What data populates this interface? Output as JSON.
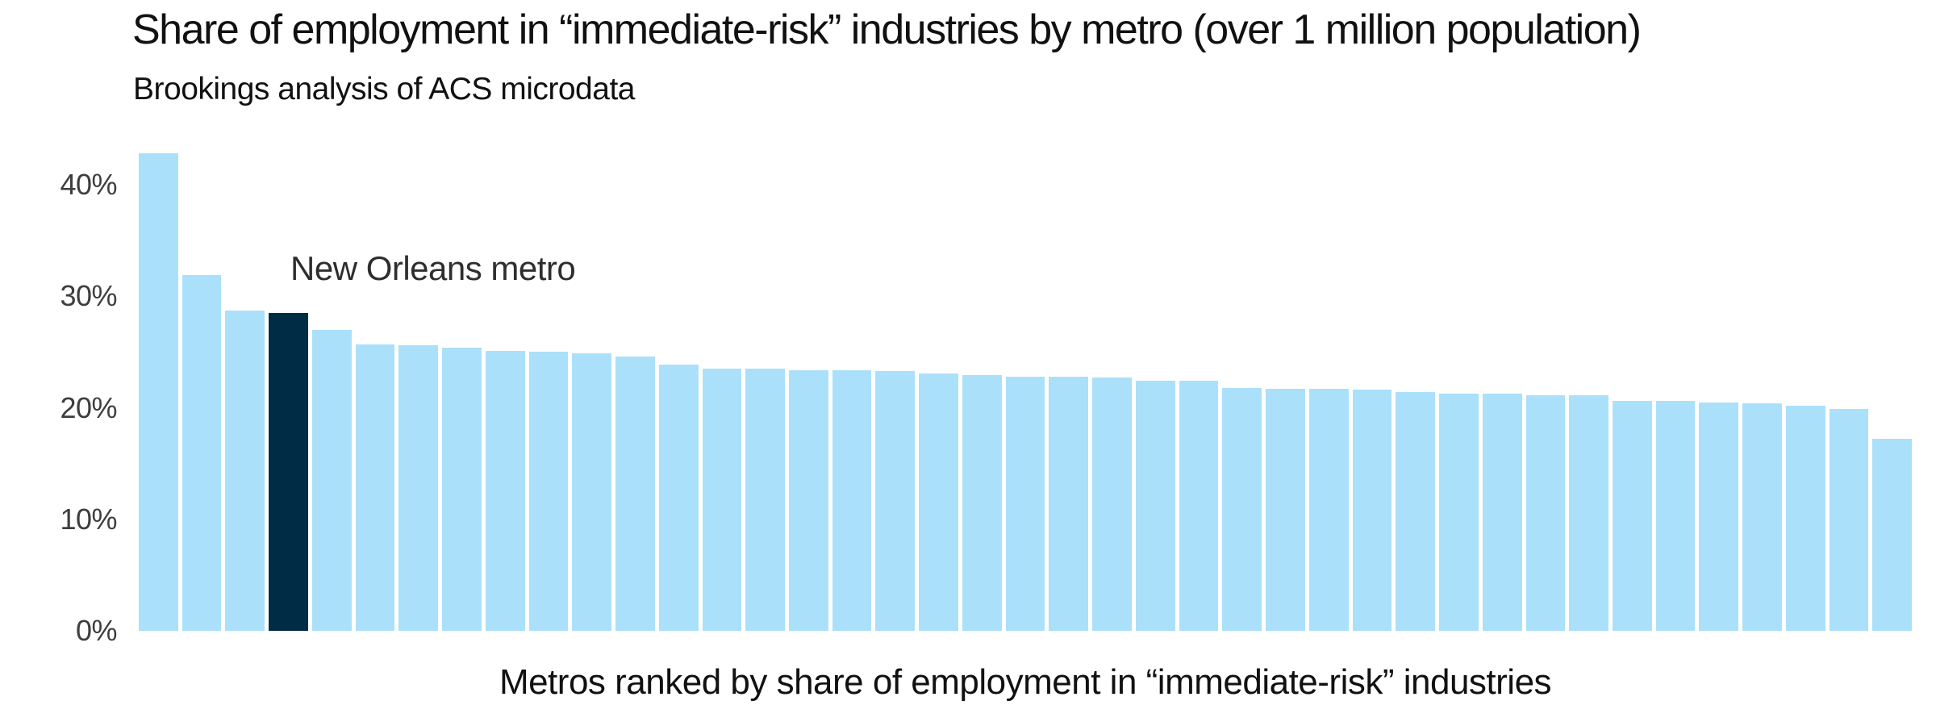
{
  "colors": {
    "bar": "#ABE0FA",
    "highlight": "#002D45",
    "title_text": "#111111",
    "tick_text": "#3E3E3E",
    "background": "#FFFFFF"
  },
  "annotation": {
    "label": "New Orleans metro"
  },
  "chart_data": {
    "type": "bar",
    "title": "Share of employment in “immediate-risk” industries by metro (over 1 million population)",
    "subtitle": "Brookings analysis of ACS microdata",
    "xlabel": "Metros ranked by share of employment in “immediate-risk” industries",
    "ylabel": "",
    "y_ticks": [
      "40%",
      "30%",
      "20%",
      "10%",
      "0%"
    ],
    "ylim": [
      0,
      45
    ],
    "grid": false,
    "legend": "none",
    "highlight_index": 3,
    "highlight_label": "New Orleans metro",
    "categories_note": "bars are unlabeled metros ranked by value",
    "values": [
      42.8,
      31.9,
      28.7,
      28.5,
      27.0,
      25.7,
      25.6,
      25.4,
      25.1,
      25.0,
      24.9,
      24.6,
      23.9,
      23.5,
      23.5,
      23.4,
      23.4,
      23.3,
      23.1,
      22.9,
      22.8,
      22.8,
      22.7,
      22.4,
      22.4,
      21.8,
      21.7,
      21.7,
      21.6,
      21.4,
      21.3,
      21.3,
      21.1,
      21.1,
      20.6,
      20.6,
      20.5,
      20.4,
      20.2,
      19.9,
      17.2
    ]
  }
}
